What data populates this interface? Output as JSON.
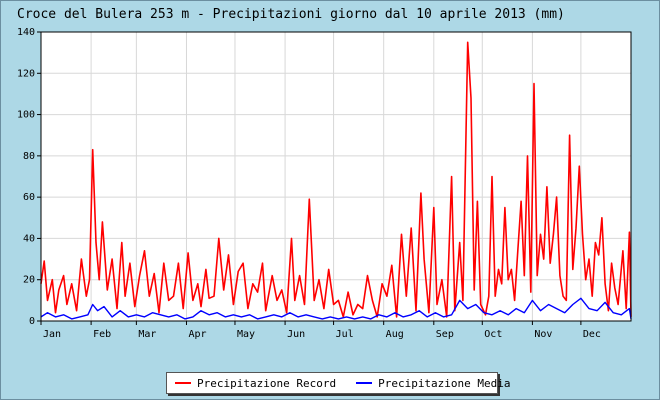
{
  "chart_data": {
    "type": "line",
    "title": "Croce del Bulera 253 m - Precipitazioni giorno dal 10 aprile 2013 (mm)",
    "xlabel": "",
    "ylabel": "",
    "ylim": [
      0,
      140
    ],
    "yticks": [
      0,
      20,
      40,
      60,
      80,
      100,
      120,
      140
    ],
    "months": [
      "Jan",
      "Feb",
      "Mar",
      "Apr",
      "May",
      "Jun",
      "Jul",
      "Aug",
      "Sep",
      "Oct",
      "Nov",
      "Dec"
    ],
    "grid": true,
    "legend_position": "bottom",
    "series": [
      {
        "name": "Precipitazione Record",
        "color": "#ff0000",
        "points": [
          [
            1,
            18
          ],
          [
            3,
            29
          ],
          [
            5,
            10
          ],
          [
            8,
            20
          ],
          [
            10,
            4
          ],
          [
            12,
            15
          ],
          [
            15,
            22
          ],
          [
            17,
            8
          ],
          [
            20,
            18
          ],
          [
            23,
            5
          ],
          [
            26,
            30
          ],
          [
            29,
            12
          ],
          [
            31,
            20
          ],
          [
            33,
            83
          ],
          [
            35,
            38
          ],
          [
            37,
            20
          ],
          [
            39,
            48
          ],
          [
            42,
            15
          ],
          [
            45,
            30
          ],
          [
            48,
            6
          ],
          [
            51,
            38
          ],
          [
            53,
            12
          ],
          [
            56,
            28
          ],
          [
            59,
            7
          ],
          [
            62,
            22
          ],
          [
            65,
            34
          ],
          [
            68,
            12
          ],
          [
            71,
            23
          ],
          [
            74,
            4
          ],
          [
            77,
            28
          ],
          [
            80,
            10
          ],
          [
            83,
            12
          ],
          [
            86,
            28
          ],
          [
            89,
            6
          ],
          [
            92,
            33
          ],
          [
            95,
            10
          ],
          [
            98,
            18
          ],
          [
            100,
            7
          ],
          [
            103,
            25
          ],
          [
            105,
            11
          ],
          [
            108,
            12
          ],
          [
            111,
            40
          ],
          [
            114,
            15
          ],
          [
            117,
            32
          ],
          [
            120,
            8
          ],
          [
            123,
            24
          ],
          [
            126,
            28
          ],
          [
            129,
            6
          ],
          [
            132,
            18
          ],
          [
            135,
            14
          ],
          [
            138,
            28
          ],
          [
            140,
            5
          ],
          [
            144,
            22
          ],
          [
            147,
            10
          ],
          [
            150,
            15
          ],
          [
            153,
            4
          ],
          [
            156,
            40
          ],
          [
            158,
            10
          ],
          [
            161,
            22
          ],
          [
            164,
            8
          ],
          [
            167,
            59
          ],
          [
            170,
            10
          ],
          [
            173,
            20
          ],
          [
            176,
            6
          ],
          [
            179,
            25
          ],
          [
            182,
            8
          ],
          [
            185,
            10
          ],
          [
            188,
            2
          ],
          [
            191,
            14
          ],
          [
            194,
            3
          ],
          [
            197,
            8
          ],
          [
            200,
            6
          ],
          [
            203,
            22
          ],
          [
            206,
            10
          ],
          [
            209,
            2
          ],
          [
            212,
            18
          ],
          [
            215,
            12
          ],
          [
            218,
            27
          ],
          [
            221,
            2
          ],
          [
            224,
            42
          ],
          [
            227,
            12
          ],
          [
            230,
            45
          ],
          [
            233,
            5
          ],
          [
            236,
            62
          ],
          [
            238,
            30
          ],
          [
            241,
            4
          ],
          [
            244,
            55
          ],
          [
            246,
            8
          ],
          [
            249,
            20
          ],
          [
            252,
            2
          ],
          [
            255,
            70
          ],
          [
            257,
            5
          ],
          [
            260,
            38
          ],
          [
            262,
            10
          ],
          [
            265,
            135
          ],
          [
            267,
            108
          ],
          [
            269,
            15
          ],
          [
            271,
            58
          ],
          [
            273,
            8
          ],
          [
            276,
            3
          ],
          [
            278,
            12
          ],
          [
            280,
            70
          ],
          [
            282,
            12
          ],
          [
            284,
            25
          ],
          [
            286,
            18
          ],
          [
            288,
            55
          ],
          [
            290,
            20
          ],
          [
            292,
            25
          ],
          [
            294,
            10
          ],
          [
            296,
            34
          ],
          [
            298,
            58
          ],
          [
            300,
            22
          ],
          [
            302,
            80
          ],
          [
            304,
            14
          ],
          [
            306,
            115
          ],
          [
            308,
            22
          ],
          [
            310,
            42
          ],
          [
            312,
            30
          ],
          [
            314,
            65
          ],
          [
            316,
            28
          ],
          [
            318,
            42
          ],
          [
            320,
            60
          ],
          [
            322,
            22
          ],
          [
            324,
            12
          ],
          [
            326,
            10
          ],
          [
            328,
            90
          ],
          [
            330,
            25
          ],
          [
            332,
            45
          ],
          [
            334,
            75
          ],
          [
            336,
            42
          ],
          [
            338,
            20
          ],
          [
            340,
            30
          ],
          [
            342,
            12
          ],
          [
            344,
            38
          ],
          [
            346,
            32
          ],
          [
            348,
            50
          ],
          [
            350,
            18
          ],
          [
            352,
            5
          ],
          [
            354,
            28
          ],
          [
            356,
            16
          ],
          [
            358,
            8
          ],
          [
            361,
            34
          ],
          [
            363,
            6
          ],
          [
            365,
            43
          ],
          [
            366,
            2
          ]
        ]
      },
      {
        "name": "Precipitazione Media",
        "color": "#0000ff",
        "points": [
          [
            1,
            2
          ],
          [
            5,
            4
          ],
          [
            10,
            2
          ],
          [
            15,
            3
          ],
          [
            20,
            1
          ],
          [
            25,
            2
          ],
          [
            30,
            3
          ],
          [
            33,
            8
          ],
          [
            36,
            5
          ],
          [
            40,
            7
          ],
          [
            45,
            2
          ],
          [
            50,
            5
          ],
          [
            55,
            2
          ],
          [
            60,
            3
          ],
          [
            65,
            2
          ],
          [
            70,
            4
          ],
          [
            75,
            3
          ],
          [
            80,
            2
          ],
          [
            85,
            3
          ],
          [
            90,
            1
          ],
          [
            95,
            2
          ],
          [
            100,
            5
          ],
          [
            105,
            3
          ],
          [
            110,
            4
          ],
          [
            115,
            2
          ],
          [
            120,
            3
          ],
          [
            125,
            2
          ],
          [
            130,
            3
          ],
          [
            135,
            1
          ],
          [
            140,
            2
          ],
          [
            145,
            3
          ],
          [
            150,
            2
          ],
          [
            155,
            4
          ],
          [
            160,
            2
          ],
          [
            165,
            3
          ],
          [
            170,
            2
          ],
          [
            175,
            1
          ],
          [
            180,
            2
          ],
          [
            185,
            1
          ],
          [
            190,
            2
          ],
          [
            195,
            1
          ],
          [
            200,
            2
          ],
          [
            205,
            1
          ],
          [
            210,
            3
          ],
          [
            215,
            2
          ],
          [
            220,
            4
          ],
          [
            225,
            2
          ],
          [
            230,
            3
          ],
          [
            235,
            5
          ],
          [
            240,
            2
          ],
          [
            245,
            4
          ],
          [
            250,
            2
          ],
          [
            255,
            3
          ],
          [
            260,
            10
          ],
          [
            265,
            6
          ],
          [
            270,
            8
          ],
          [
            275,
            4
          ],
          [
            280,
            3
          ],
          [
            285,
            5
          ],
          [
            290,
            3
          ],
          [
            295,
            6
          ],
          [
            300,
            4
          ],
          [
            305,
            10
          ],
          [
            310,
            5
          ],
          [
            315,
            8
          ],
          [
            320,
            6
          ],
          [
            325,
            4
          ],
          [
            330,
            8
          ],
          [
            335,
            11
          ],
          [
            340,
            6
          ],
          [
            345,
            5
          ],
          [
            350,
            9
          ],
          [
            355,
            4
          ],
          [
            360,
            3
          ],
          [
            365,
            6
          ],
          [
            366,
            1
          ]
        ]
      }
    ]
  }
}
